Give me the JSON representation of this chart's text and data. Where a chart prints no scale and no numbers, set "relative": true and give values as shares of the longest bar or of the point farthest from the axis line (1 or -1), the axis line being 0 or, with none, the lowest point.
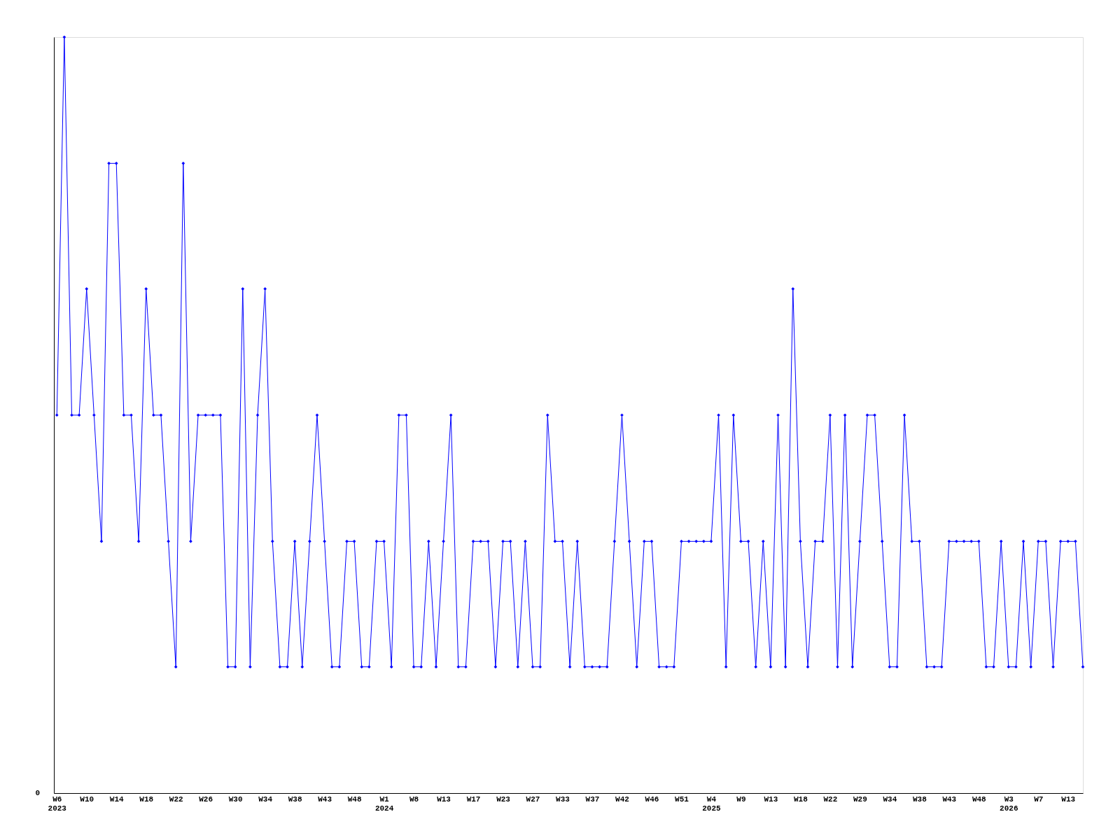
{
  "chart_data": {
    "type": "line",
    "relative": true,
    "marker": "diamond",
    "grid": false,
    "line_style": "solid",
    "categories": [
      "W6\n2023",
      null,
      null,
      null,
      "W10",
      null,
      null,
      null,
      "W14",
      null,
      null,
      null,
      "W18",
      null,
      null,
      null,
      "W22",
      null,
      null,
      null,
      "W26",
      null,
      null,
      null,
      "W30",
      null,
      null,
      null,
      "W34",
      null,
      null,
      null,
      "W38",
      null,
      null,
      null,
      "W43",
      null,
      null,
      null,
      "W48",
      null,
      null,
      null,
      "W1\n2024",
      null,
      null,
      null,
      "W8",
      null,
      null,
      null,
      "W13",
      null,
      null,
      null,
      "W17",
      null,
      null,
      null,
      "W23",
      null,
      null,
      null,
      "W27",
      null,
      null,
      null,
      "W33",
      null,
      null,
      null,
      "W37",
      null,
      null,
      null,
      "W42",
      null,
      null,
      null,
      "W46",
      null,
      null,
      null,
      "W51",
      null,
      null,
      null,
      "W4\n2025",
      null,
      null,
      null,
      "W9",
      null,
      null,
      null,
      "W13",
      null,
      null,
      null,
      "W18",
      null,
      null,
      null,
      "W22",
      null,
      null,
      null,
      "W29",
      null,
      null,
      null,
      "W34",
      null,
      null,
      null,
      "W38",
      null,
      null,
      null,
      "W43",
      null,
      null,
      null,
      "W48",
      null,
      null,
      null,
      "W3\n2026",
      null,
      null,
      null,
      "W7",
      null,
      null,
      null,
      "W13",
      null,
      null
    ],
    "series": [
      {
        "color": "#0000ff",
        "values": [
          0.5,
          1,
          0.5,
          0.5,
          0.667,
          0.5,
          0.333,
          0.833,
          0.833,
          0.5,
          0.5,
          0.333,
          0.667,
          0.5,
          0.5,
          0.333,
          0.167,
          0.833,
          0.333,
          0.5,
          0.5,
          0.5,
          0.5,
          0.167,
          0.167,
          0.667,
          0.167,
          0.5,
          0.667,
          0.333,
          0.167,
          0.167,
          0.333,
          0.167,
          0.333,
          0.5,
          0.333,
          0.167,
          0.167,
          0.333,
          0.333,
          0.167,
          0.167,
          0.333,
          0.333,
          0.167,
          0.5,
          0.5,
          0.167,
          0.167,
          0.333,
          0.167,
          0.333,
          0.5,
          0.167,
          0.167,
          0.333,
          0.333,
          0.333,
          0.167,
          0.333,
          0.333,
          0.167,
          0.333,
          0.167,
          0.167,
          0.5,
          0.333,
          0.333,
          0.167,
          0.333,
          0.167,
          0.167,
          0.167,
          0.167,
          0.333,
          0.5,
          0.333,
          0.167,
          0.333,
          0.333,
          0.167,
          0.167,
          0.167,
          0.333,
          0.333,
          0.333,
          0.333,
          0.333,
          0.5,
          0.167,
          0.5,
          0.333,
          0.333,
          0.167,
          0.333,
          0.167,
          0.5,
          0.167,
          0.667,
          0.333,
          0.167,
          0.333,
          0.333,
          0.5,
          0.167,
          0.5,
          0.167,
          0.333,
          0.5,
          0.5,
          0.333,
          0.167,
          0.167,
          0.5,
          0.333,
          0.333,
          0.167,
          0.167,
          0.167,
          0.333,
          0.333,
          0.333,
          0.333,
          0.333,
          0.167,
          0.167,
          0.333,
          0.167,
          0.167,
          0.333,
          0.167,
          0.333,
          0.333,
          0.167,
          0.333,
          0.333,
          0.333,
          0.167
        ]
      }
    ],
    "annotations": [
      "0"
    ]
  }
}
